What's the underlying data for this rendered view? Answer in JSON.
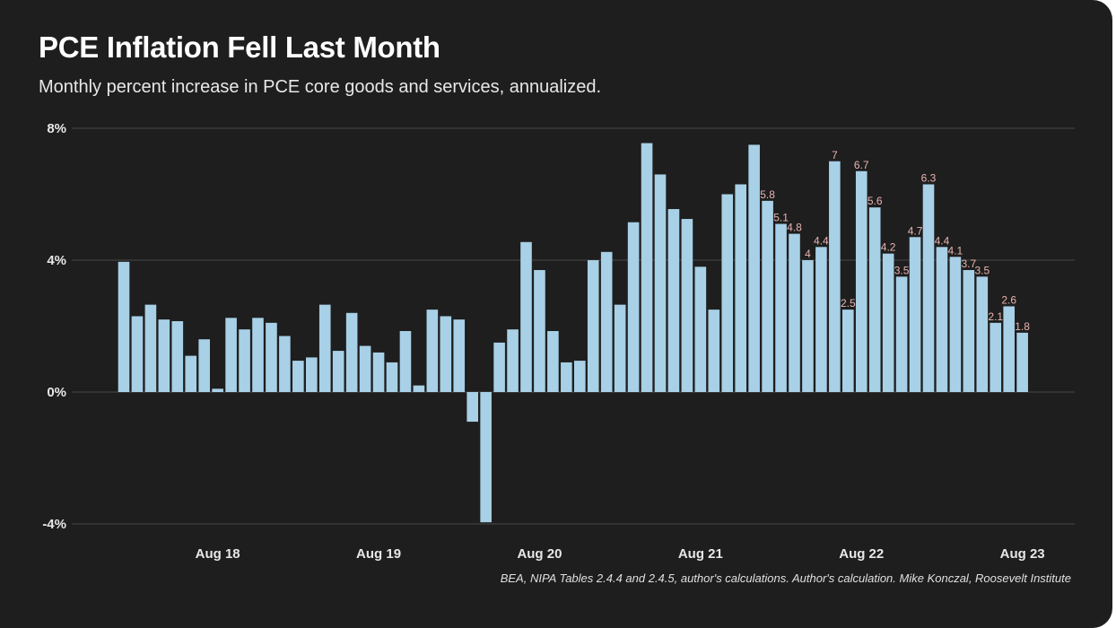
{
  "chart_data": {
    "type": "bar",
    "title": "PCE Inflation Fell Last Month",
    "subtitle": "Monthly percent increase in PCE core goods and services, annualized.",
    "source": "BEA, NIPA Tables 2.4.4 and 2.4.5, author's calculations. Author's calculation. Mike Konczal, Roosevelt Institute",
    "xlabel": "",
    "ylabel": "",
    "ylim": [
      -4,
      8
    ],
    "yticks": [
      {
        "v": 8,
        "label": "8%"
      },
      {
        "v": 4,
        "label": "4%"
      },
      {
        "v": 0,
        "label": "0%"
      },
      {
        "v": -4,
        "label": "-4%"
      }
    ],
    "xticks": [
      {
        "index": 7,
        "label": "Aug 18"
      },
      {
        "index": 19,
        "label": "Aug 19"
      },
      {
        "index": 31,
        "label": "Aug 20"
      },
      {
        "index": 43,
        "label": "Aug 21"
      },
      {
        "index": 55,
        "label": "Aug 22"
      },
      {
        "index": 67,
        "label": "Aug 23"
      }
    ],
    "grid": true,
    "start_month": "Jan 2018",
    "end_month": "Aug 2023",
    "values": [
      3.95,
      2.3,
      2.65,
      2.2,
      2.15,
      1.1,
      1.6,
      0.1,
      2.25,
      1.9,
      2.25,
      2.1,
      1.7,
      0.95,
      1.05,
      2.65,
      1.25,
      2.4,
      1.4,
      1.2,
      0.9,
      1.85,
      0.2,
      2.5,
      2.3,
      2.2,
      -0.9,
      -3.95,
      1.5,
      1.9,
      4.55,
      3.7,
      1.85,
      0.9,
      0.95,
      4.0,
      4.25,
      2.65,
      5.15,
      7.55,
      6.6,
      5.55,
      5.25,
      3.8,
      2.5,
      6.0,
      6.3,
      7.5,
      5.8,
      5.1,
      4.8,
      4,
      4.4,
      7,
      2.5,
      6.7,
      5.6,
      4.2,
      3.5,
      4.7,
      6.3,
      4.4,
      4.1,
      3.7,
      3.5,
      2.1,
      2.6,
      1.8
    ],
    "data_labels": {
      "from_index": 48,
      "labels": [
        "5.8",
        "5.1",
        "4.8",
        "4",
        "4.4",
        "7",
        "2.5",
        "6.7",
        "5.6",
        "4.2",
        "3.5",
        "4.7",
        "6.3",
        "4.4",
        "4.1",
        "3.7",
        "3.5",
        "2.1",
        "2.6",
        "1.8"
      ]
    },
    "colors": {
      "bar": "#a8d0e6",
      "label": "#e8b4b0",
      "grid": "#3a3a3a",
      "background": "#1e1e1e"
    }
  }
}
